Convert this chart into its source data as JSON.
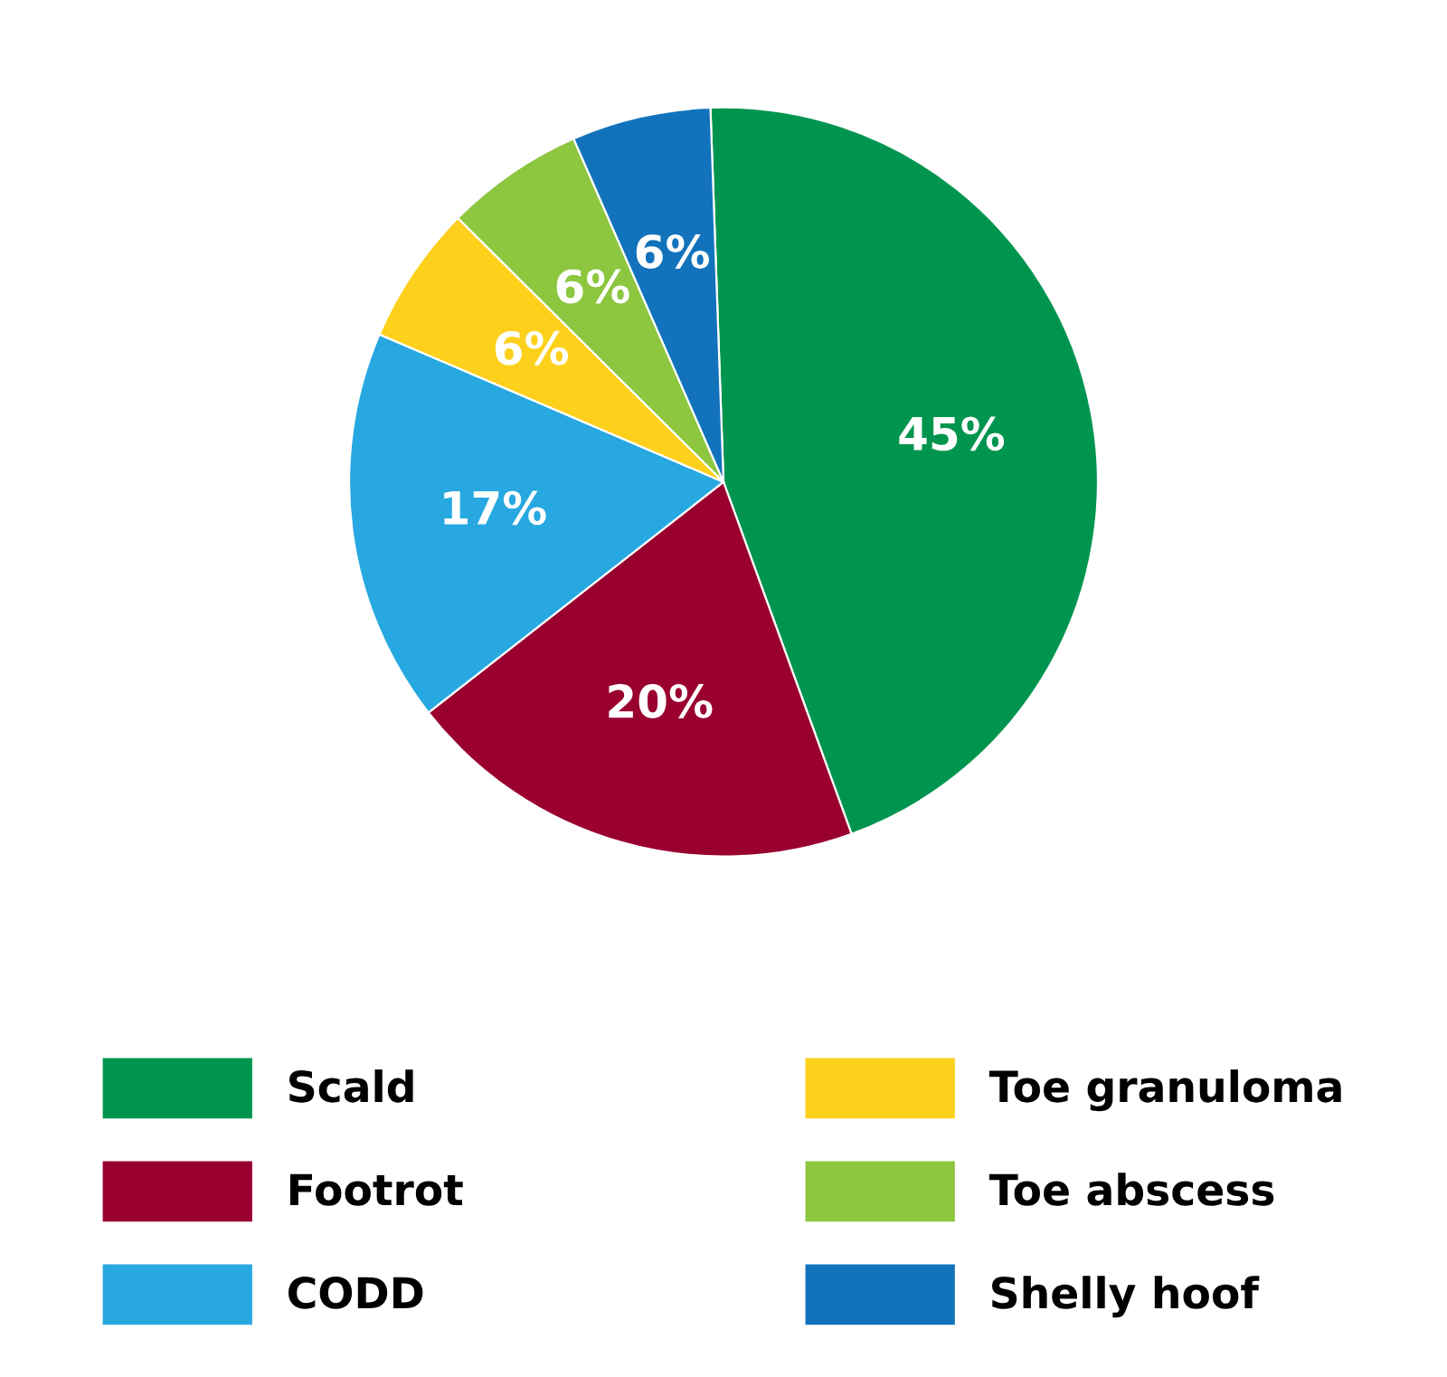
{
  "chart_data": {
    "type": "pie",
    "categories": [
      "Scald",
      "Footrot",
      "CODD",
      "Toe granuloma",
      "Toe abscess",
      "Shelly hoof"
    ],
    "values": [
      45,
      20,
      17,
      6,
      6,
      6
    ],
    "colors": [
      "#00954f",
      "#990030",
      "#27a8e0",
      "#fdd01c",
      "#8dc63f",
      "#1273bc"
    ],
    "value_labels": [
      "45%",
      "20%",
      "17%",
      "6%",
      "6%",
      "6%"
    ],
    "legend": "bottom"
  }
}
